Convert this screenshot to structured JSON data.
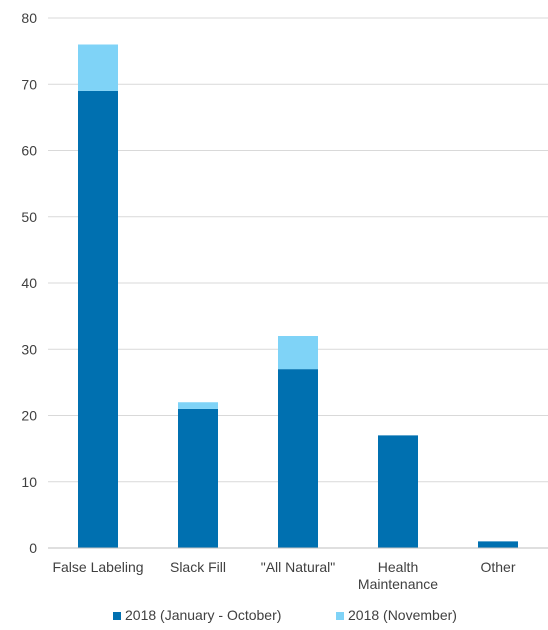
{
  "chart_data": {
    "type": "bar",
    "stacked": true,
    "categories": [
      "False Labeling",
      "Slack Fill",
      "\"All Natural\"",
      "Health Maintenance",
      "Other"
    ],
    "series": [
      {
        "name": "2018 (January - October)",
        "values": [
          69,
          21,
          27,
          17,
          1
        ],
        "color": "#0070b0"
      },
      {
        "name": "2018 (November)",
        "values": [
          7,
          1,
          5,
          0,
          0
        ],
        "color": "#7fd3f7"
      }
    ],
    "ylim": [
      0,
      80
    ],
    "yticks": [
      0,
      10,
      20,
      30,
      40,
      50,
      60,
      70,
      80
    ],
    "grid": true,
    "legend_position": "bottom"
  },
  "colors": {
    "gridline": "#d9d9d9",
    "axis": "#bfbfbf"
  }
}
